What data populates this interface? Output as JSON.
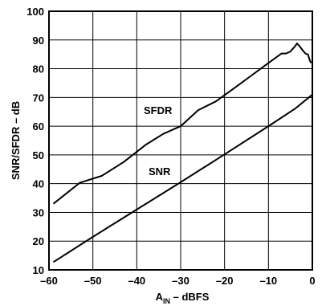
{
  "chart_data": {
    "type": "line",
    "xlabel": {
      "main": "A",
      "sub": "IN",
      "rest": " – dBFS"
    },
    "ylabel": "SNR/SFDR – dB",
    "xlim": [
      -60,
      0
    ],
    "ylim": [
      10,
      100
    ],
    "x_ticks": [
      -60,
      -50,
      -40,
      -30,
      -20,
      -10,
      0
    ],
    "x_tick_labels": [
      "–60",
      "–50",
      "–40",
      "–30",
      "–20",
      "–10",
      "0"
    ],
    "y_ticks": [
      10,
      20,
      30,
      40,
      50,
      60,
      70,
      80,
      90,
      100
    ],
    "y_tick_labels": [
      "10",
      "20",
      "30",
      "40",
      "50",
      "60",
      "70",
      "80",
      "90",
      "100"
    ],
    "grid": true,
    "series": [
      {
        "name": "SFDR",
        "x": [
          -59,
          -53,
          -48,
          -43,
          -38,
          -34,
          -30,
          -26,
          -22,
          -18,
          -14,
          -10,
          -7,
          -6,
          -5,
          -4,
          -3.5,
          -3,
          -2,
          -1.5,
          -1,
          -0.6,
          -0.3
        ],
        "y": [
          33,
          40.3,
          42.7,
          47.5,
          53.5,
          57.3,
          60,
          65.6,
          68.6,
          73,
          77.5,
          82,
          85.3,
          85.3,
          86,
          87.7,
          88.8,
          88,
          86,
          85.2,
          85,
          83,
          82
        ]
      },
      {
        "name": "SNR",
        "x": [
          -59,
          -50,
          -40,
          -30,
          -20,
          -10,
          -4,
          -2,
          0
        ],
        "y": [
          12.7,
          21.5,
          31,
          40.5,
          50.2,
          60,
          66,
          68.5,
          71
        ]
      }
    ]
  }
}
